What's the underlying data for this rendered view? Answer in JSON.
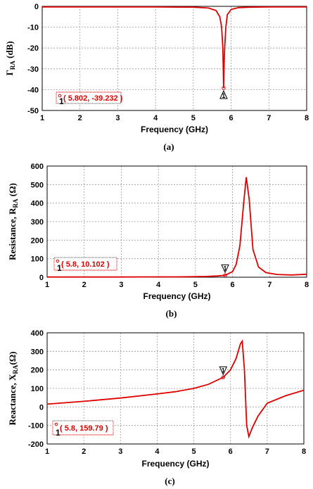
{
  "chart_data": [
    {
      "type": "line",
      "caption": "(a)",
      "xlabel": "Frequency (GHz)",
      "ylabel_main": "Γ",
      "ylabel_sub": "RA",
      "ylabel_tail": " (dB)",
      "xlim": [
        1,
        8
      ],
      "ylim": [
        -50,
        0
      ],
      "xticks": [
        1,
        2,
        3,
        4,
        5,
        6,
        7,
        8
      ],
      "yticks": [
        0,
        -10,
        -20,
        -30,
        -40,
        -50
      ],
      "grid": true,
      "series": [
        {
          "x": [
            1,
            2,
            3,
            4,
            5,
            5.4,
            5.6,
            5.7,
            5.75,
            5.78,
            5.79,
            5.802,
            5.815,
            5.83,
            5.86,
            5.9,
            6.0,
            6.2,
            6.5,
            7,
            8
          ],
          "y": [
            -0.3,
            -0.3,
            -0.3,
            -0.3,
            -0.4,
            -0.8,
            -2,
            -5,
            -10,
            -20,
            -28,
            -39.232,
            -28,
            -20,
            -10,
            -4,
            -1.5,
            -0.6,
            -0.4,
            -0.3,
            -0.3
          ],
          "color": "#e00000"
        }
      ],
      "marker": {
        "id": "1",
        "x": 5.802,
        "y": -39.232,
        "label": "( 5.802, -39.232 )",
        "shape": "up-triangle"
      }
    },
    {
      "type": "line",
      "caption": "(b)",
      "xlabel": "Frequency (GHz)",
      "ylabel_main": "Resistance,  R",
      "ylabel_sub": "RA",
      "ylabel_tail": " (Ω)",
      "xlim": [
        1,
        8
      ],
      "ylim": [
        0,
        600
      ],
      "xticks": [
        1,
        2,
        3,
        4,
        5,
        6,
        7,
        8
      ],
      "yticks": [
        0,
        100,
        200,
        300,
        400,
        500,
        600
      ],
      "grid": true,
      "series": [
        {
          "x": [
            1,
            2,
            3,
            4,
            4.5,
            5,
            5.3,
            5.6,
            5.8,
            6.0,
            6.1,
            6.2,
            6.3,
            6.37,
            6.45,
            6.55,
            6.7,
            6.9,
            7.2,
            7.6,
            8
          ],
          "y": [
            1,
            1,
            1,
            2,
            2,
            3,
            4,
            7,
            10.1,
            30,
            70,
            170,
            400,
            540,
            420,
            150,
            55,
            25,
            15,
            12,
            16
          ],
          "color": "#e00000"
        }
      ],
      "marker": {
        "id": "1",
        "x": 5.8,
        "y": 10.102,
        "label": "( 5.8, 10.102 )",
        "shape": "down-triangle"
      }
    },
    {
      "type": "line",
      "caption": "(c)",
      "xlabel": "Frequency (GHz)",
      "ylabel_main": "Reactance,  X",
      "ylabel_sub": "RA",
      "ylabel_tail": "(Ω)",
      "xlim": [
        1,
        8
      ],
      "ylim": [
        -200,
        400
      ],
      "xticks": [
        1,
        2,
        3,
        4,
        5,
        6,
        7,
        8
      ],
      "yticks": [
        400,
        300,
        200,
        100,
        0,
        -100,
        -200
      ],
      "grid": true,
      "series": [
        {
          "x": [
            1,
            2,
            3,
            4,
            4.5,
            5,
            5.4,
            5.8,
            6.0,
            6.15,
            6.27,
            6.32,
            6.38,
            6.44,
            6.5,
            6.6,
            6.75,
            7,
            7.5,
            8
          ],
          "y": [
            15,
            30,
            48,
            70,
            82,
            100,
            122,
            159.79,
            200,
            260,
            340,
            355,
            200,
            -100,
            -160,
            -110,
            -50,
            20,
            60,
            90
          ],
          "color": "#e00000"
        }
      ],
      "marker": {
        "id": "1",
        "x": 5.8,
        "y": 159.79,
        "label": "( 5.8, 159.79 )",
        "shape": "down-triangle"
      }
    }
  ]
}
